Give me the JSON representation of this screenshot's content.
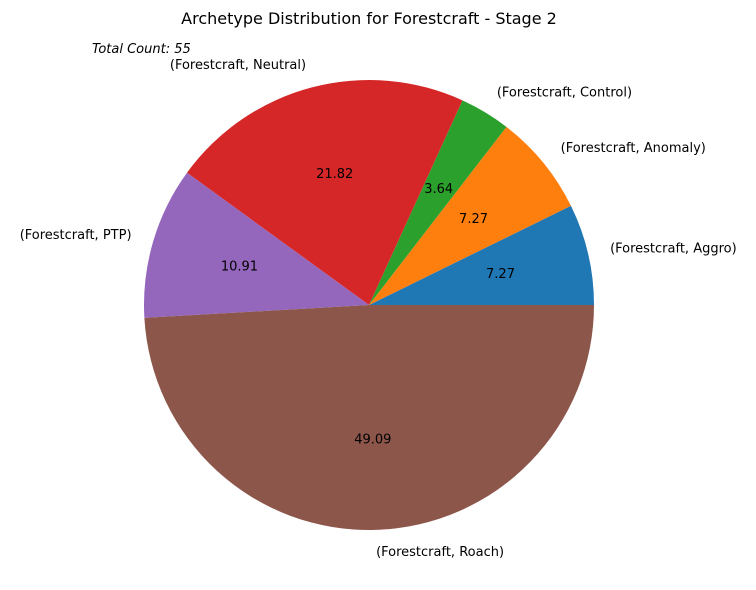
{
  "chart_data": {
    "type": "pie",
    "title": "Archetype Distribution for Forestcraft - Stage 2",
    "annotation": "Total Count: 55",
    "categories": [
      "(Forestcraft, Aggro)",
      "(Forestcraft, Anomaly)",
      "(Forestcraft, Control)",
      "(Forestcraft, Neutral)",
      "(Forestcraft, PTP)",
      "(Forestcraft, Roach)"
    ],
    "values": [
      7.27,
      7.27,
      3.64,
      21.82,
      10.91,
      49.09
    ],
    "value_labels": [
      "7.27",
      "7.27",
      "3.64",
      "21.82",
      "10.91",
      "49.09"
    ],
    "colors": [
      "#1f77b4",
      "#ff7f0e",
      "#2ca02c",
      "#d62728",
      "#9467bd",
      "#8c564b"
    ],
    "start_angle_deg": 0,
    "direction": "counterclockwise"
  }
}
